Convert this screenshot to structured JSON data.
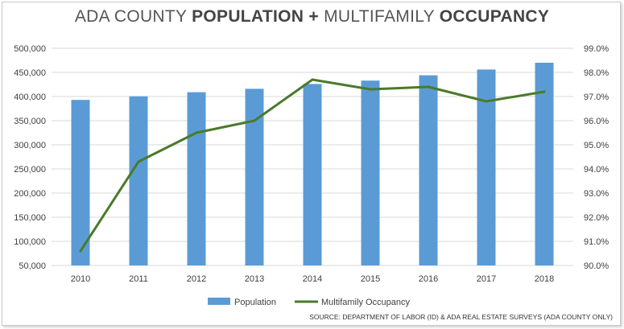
{
  "chart_data": {
    "type": "bar",
    "title_parts": [
      {
        "text": "ADA COUNTY ",
        "bold": false
      },
      {
        "text": "POPULATION",
        "bold": true
      },
      {
        "text": " + ",
        "bold": true
      },
      {
        "text": "MULTIFAMILY ",
        "bold": false
      },
      {
        "text": "OCCUPANCY",
        "bold": true
      }
    ],
    "categories": [
      "2010",
      "2011",
      "2012",
      "2013",
      "2014",
      "2015",
      "2016",
      "2017",
      "2018"
    ],
    "series": [
      {
        "name": "Population",
        "type": "bar",
        "axis": "left",
        "color": "#5b9bd5",
        "values": [
          393000,
          400500,
          409000,
          416000,
          426000,
          433000,
          444000,
          456000,
          470000
        ]
      },
      {
        "name": "Multifamily Occupancy",
        "type": "line",
        "axis": "right",
        "color": "#4a7a2c",
        "values": [
          90.6,
          94.3,
          95.5,
          96.0,
          97.7,
          97.3,
          97.4,
          96.8,
          97.2
        ]
      }
    ],
    "ylim": [
      50000,
      500000
    ],
    "yticks": [
      "50,000",
      "100,000",
      "150,000",
      "200,000",
      "250,000",
      "300,000",
      "350,000",
      "400,000",
      "450,000",
      "500,000"
    ],
    "y2lim": [
      90.0,
      99.0
    ],
    "y2ticks": [
      "90.0%",
      "91.0%",
      "92.0%",
      "93.0%",
      "94.0%",
      "95.0%",
      "96.0%",
      "97.0%",
      "98.0%",
      "99.0%"
    ],
    "grid": true,
    "legend_position": "bottom",
    "source": "SOURCE:  DEPARTMENT OF LABOR (ID) & ADA REAL ESTATE SURVEYS (ADA COUNTY ONLY)"
  }
}
